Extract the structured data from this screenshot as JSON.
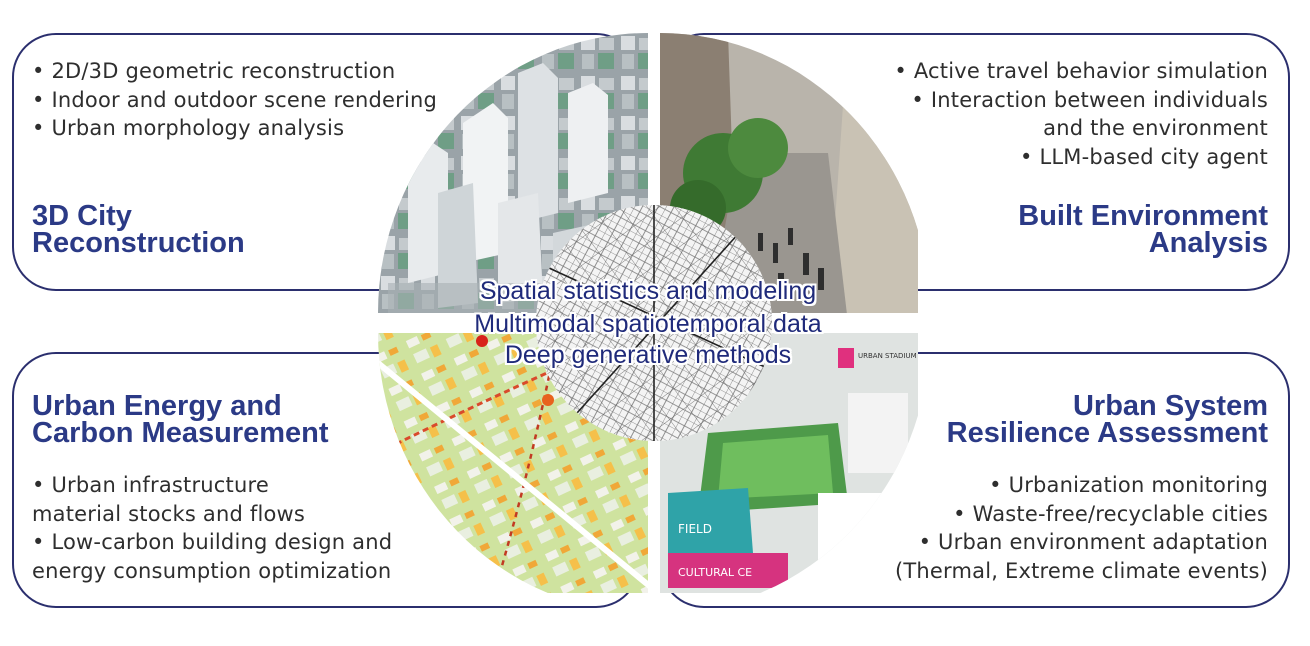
{
  "center": {
    "lines": [
      "Spatial statistics and modeling",
      "Multimodal spatiotemporal data",
      "Deep generative methods"
    ]
  },
  "quadrants": {
    "top_left": {
      "title_lines": [
        "3D City",
        "Reconstruction"
      ],
      "bullets": [
        "• 2D/3D geometric reconstruction",
        "• Indoor and outdoor scene rendering",
        "• Urban morphology analysis"
      ]
    },
    "top_right": {
      "title_lines": [
        "Built Environment",
        "Analysis"
      ],
      "bullets": [
        "• Active travel behavior simulation",
        "• Interaction between individuals",
        "and the environment",
        "• LLM-based city agent"
      ]
    },
    "bottom_left": {
      "title_lines": [
        "Urban Energy and",
        "Carbon Measurement"
      ],
      "bullets": [
        "• Urban infrastructure",
        "material stocks and flows",
        "• Low-carbon building design and",
        "energy consumption optimization"
      ]
    },
    "bottom_right": {
      "title_lines": [
        "Urban System",
        "Resilience Assessment"
      ],
      "bullets": [
        "• Urbanization monitoring",
        "• Waste-free/recyclable cities",
        "• Urban environment adaptation",
        "(Thermal, Extreme climate events)"
      ]
    }
  },
  "image_labels": {
    "stadium_sign": "URBAN STADIUM",
    "cultural_sign": "CULTURAL CE",
    "field_sign": "FIELD"
  },
  "colors": {
    "border": "#2b2f6e",
    "title": "#2b3a86",
    "body_text": "#2e2e2e"
  }
}
